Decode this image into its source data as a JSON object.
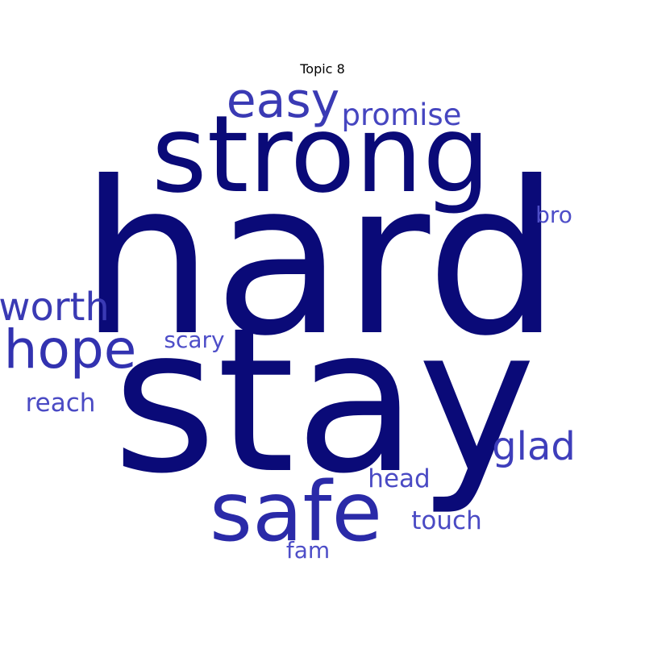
{
  "chart_data": {
    "type": "wordcloud",
    "title": "Topic 8",
    "words": [
      {
        "text": "hard",
        "weight": 100,
        "color": "#0a0a78"
      },
      {
        "text": "stay",
        "weight": 94,
        "color": "#0a0a78"
      },
      {
        "text": "strong",
        "weight": 52,
        "color": "#0a0a78"
      },
      {
        "text": "safe",
        "weight": 40,
        "color": "#2a2aa8"
      },
      {
        "text": "hope",
        "weight": 26,
        "color": "#3232b0"
      },
      {
        "text": "easy",
        "weight": 24,
        "color": "#3a3ab4"
      },
      {
        "text": "worth",
        "weight": 20,
        "color": "#3a3ab4"
      },
      {
        "text": "glad",
        "weight": 19,
        "color": "#3e3ebb"
      },
      {
        "text": "promise",
        "weight": 16,
        "color": "#4646c0"
      },
      {
        "text": "reach",
        "weight": 13,
        "color": "#4a4ac4"
      },
      {
        "text": "head",
        "weight": 13,
        "color": "#4a4ac4"
      },
      {
        "text": "touch",
        "weight": 13,
        "color": "#4a4ac4"
      },
      {
        "text": "scary",
        "weight": 12,
        "color": "#4e4ec8"
      },
      {
        "text": "fam",
        "weight": 12,
        "color": "#4e4ec8"
      },
      {
        "text": "bro",
        "weight": 12,
        "color": "#4e4ec8"
      }
    ]
  }
}
